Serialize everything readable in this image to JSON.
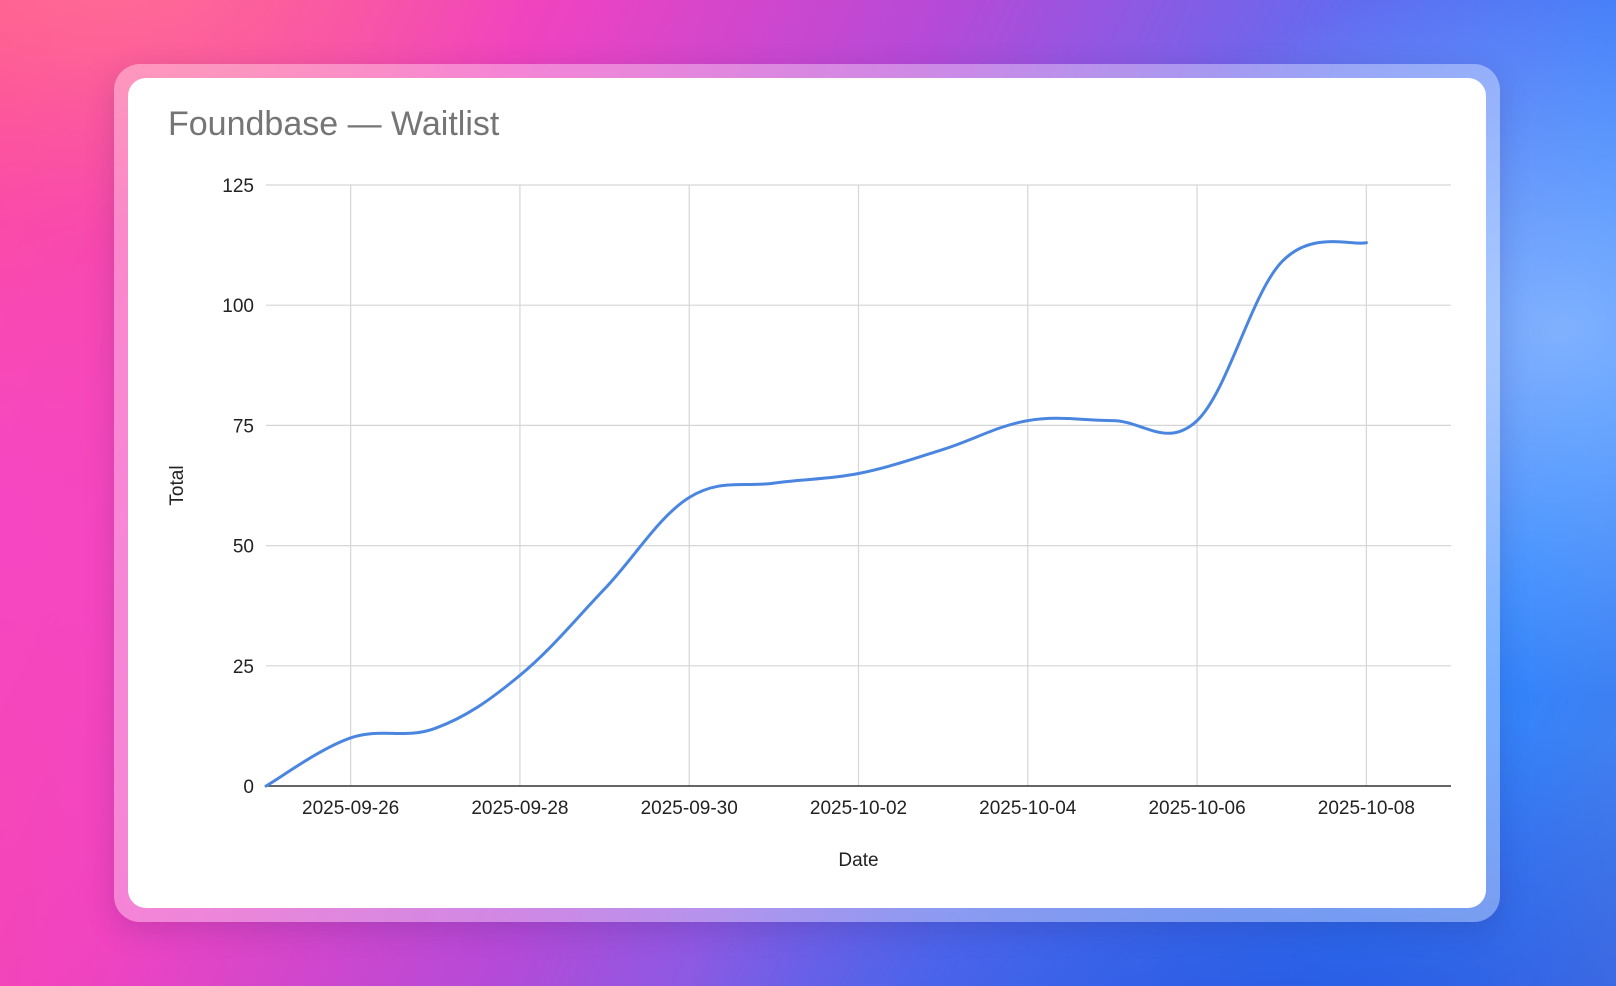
{
  "chart_data": {
    "type": "line",
    "title": "Foundbase — Waitlist",
    "xlabel": "Date",
    "ylabel": "Total",
    "ylim": [
      0,
      125
    ],
    "yticks": [
      0,
      25,
      50,
      75,
      100,
      125
    ],
    "xlim": [
      "2025-09-25",
      "2025-10-09"
    ],
    "xticks": [
      "2025-09-26",
      "2025-09-28",
      "2025-09-30",
      "2025-10-02",
      "2025-10-04",
      "2025-10-06",
      "2025-10-08"
    ],
    "grid": true,
    "legend": "none",
    "line_color": "#4a86e0",
    "series": [
      {
        "x": [
          "2025-09-25",
          "2025-09-26",
          "2025-09-27",
          "2025-09-28",
          "2025-09-29",
          "2025-09-30",
          "2025-10-01",
          "2025-10-02",
          "2025-10-03",
          "2025-10-04",
          "2025-10-05",
          "2025-10-06",
          "2025-10-07",
          "2025-10-08"
        ],
        "values": [
          0,
          10,
          12,
          23,
          41,
          60,
          63,
          65,
          70,
          76,
          76,
          76,
          109,
          113
        ]
      }
    ]
  }
}
